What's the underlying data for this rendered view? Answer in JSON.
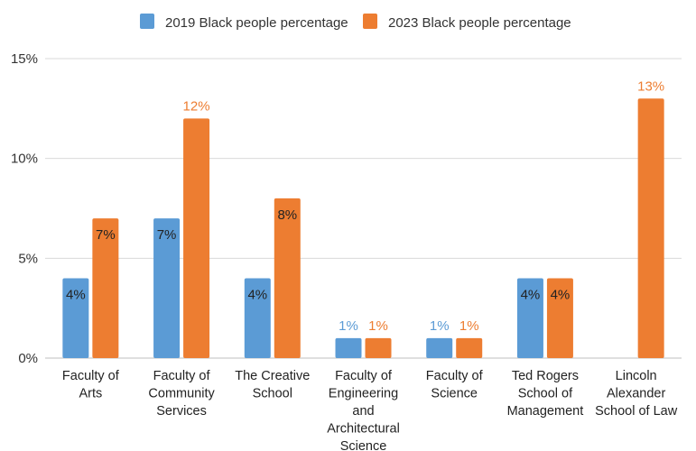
{
  "chart_data": {
    "type": "bar",
    "categories": [
      "Faculty of Arts",
      "Faculty of Community Services",
      "The Creative School",
      "Faculty of Engineering and Architectural Science",
      "Faculty of Science",
      "Ted Rogers School of Management",
      "Lincoln Alexander School of Law"
    ],
    "category_label_lines": [
      [
        "Faculty of",
        "Arts"
      ],
      [
        "Faculty of",
        "Community",
        "Services"
      ],
      [
        "The Creative",
        "School"
      ],
      [
        "Faculty of",
        "Engineering",
        "and",
        "Architectural",
        "Science"
      ],
      [
        "Faculty of",
        "Science"
      ],
      [
        "Ted Rogers",
        "School of",
        "Management"
      ],
      [
        "Lincoln",
        "Alexander",
        "School of Law"
      ]
    ],
    "series": [
      {
        "name": "2019 Black people percentage",
        "color": "#5B9BD5",
        "values": [
          4,
          7,
          4,
          1,
          1,
          4,
          null
        ],
        "labels": [
          "4%",
          "7%",
          "4%",
          "1%",
          "1%",
          "4%",
          ""
        ]
      },
      {
        "name": "2023 Black people percentage",
        "color": "#ED7D31",
        "values": [
          7,
          12,
          8,
          1,
          1,
          4,
          13
        ],
        "labels": [
          "7%",
          "12%",
          "8%",
          "1%",
          "1%",
          "4%",
          "13%"
        ]
      }
    ],
    "yticks": [
      0,
      5,
      10,
      15
    ],
    "ytick_labels": [
      "0%",
      "5%",
      "10%",
      "15%"
    ],
    "ylim": [
      0,
      15
    ],
    "grid": true,
    "legend_position": "top",
    "title": "",
    "xlabel": "",
    "ylabel": ""
  }
}
